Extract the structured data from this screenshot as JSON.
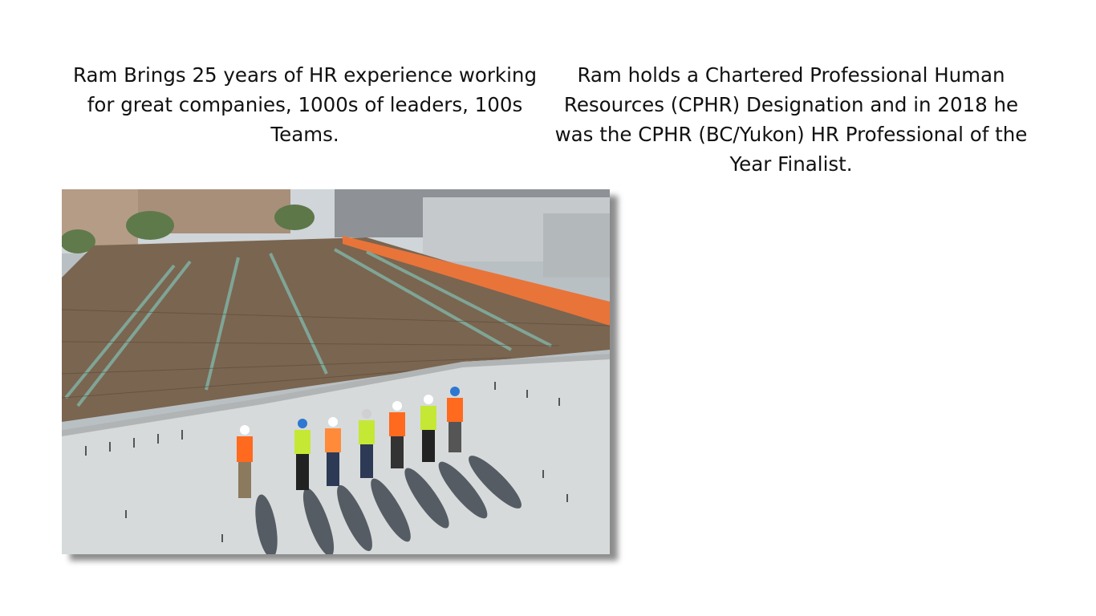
{
  "left_text": "Ram Brings 25 years of HR experience working for great companies, 1000s of leaders, 100s Teams.",
  "right_text": "Ram holds a Chartered Professional Human Resources (CPHR) Designation and in 2018 he was the CPHR (BC/Yukon) HR Professional of the Year Finalist.",
  "photo": {
    "icon": "construction-site-photo",
    "colors": {
      "sky": "#d7dee2",
      "roof": "#d6dadb",
      "rebar": "#6f5a44",
      "barrier": "#e8743a",
      "vest": "#ff6a1f"
    }
  }
}
